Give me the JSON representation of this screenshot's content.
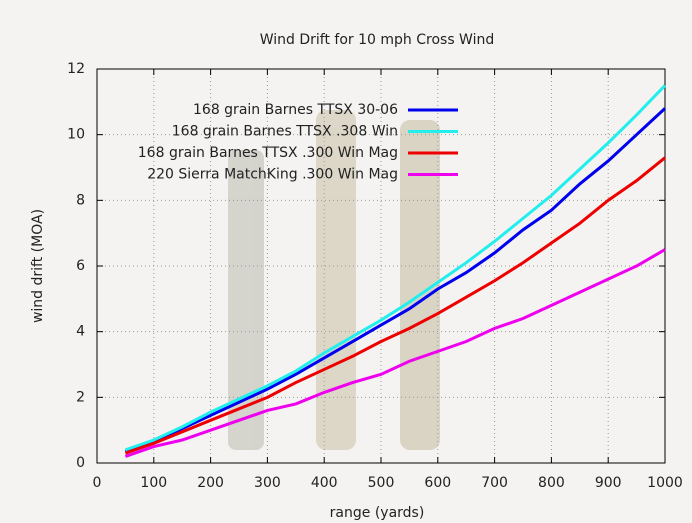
{
  "chart_data": {
    "type": "line",
    "title": "Wind Drift for 10 mph Cross Wind",
    "x_label": "range (yards)",
    "y_label": "wind drift (MOA)",
    "x": [
      50,
      100,
      150,
      200,
      250,
      300,
      350,
      400,
      450,
      500,
      550,
      600,
      650,
      700,
      750,
      800,
      850,
      900,
      950,
      1000
    ],
    "series": [
      {
        "name": "168 grain Barnes TTSX 30-06",
        "color": "#0000ee",
        "values": [
          0.35,
          0.65,
          1.05,
          1.45,
          1.85,
          2.25,
          2.7,
          3.2,
          3.7,
          4.2,
          4.7,
          5.3,
          5.8,
          6.4,
          7.1,
          7.7,
          8.5,
          9.2,
          10.0,
          10.8
        ]
      },
      {
        "name": "168 grain Barnes TTSX .308 Win",
        "color": "#22eeee",
        "values": [
          0.4,
          0.7,
          1.1,
          1.55,
          1.95,
          2.35,
          2.8,
          3.35,
          3.85,
          4.35,
          4.9,
          5.5,
          6.1,
          6.75,
          7.45,
          8.15,
          8.95,
          9.75,
          10.6,
          11.5
        ]
      },
      {
        "name": "168 grain Barnes TTSX .300 Win Mag",
        "color": "#ee0000",
        "values": [
          0.3,
          0.6,
          0.95,
          1.3,
          1.65,
          2.0,
          2.45,
          2.85,
          3.25,
          3.7,
          4.1,
          4.55,
          5.05,
          5.55,
          6.1,
          6.7,
          7.3,
          8.0,
          8.6,
          9.3
        ]
      },
      {
        "name": "220 Sierra MatchKing .300 Win Mag",
        "color": "#ee00ee",
        "values": [
          0.2,
          0.5,
          0.7,
          1.0,
          1.3,
          1.6,
          1.8,
          2.15,
          2.45,
          2.7,
          3.1,
          3.4,
          3.7,
          4.1,
          4.4,
          4.8,
          5.2,
          5.6,
          6.0,
          6.5
        ]
      }
    ],
    "xlim": [
      0,
      1000
    ],
    "xticks": [
      0,
      100,
      200,
      300,
      400,
      500,
      600,
      700,
      800,
      900,
      1000
    ],
    "ylim": [
      0,
      12
    ],
    "yticks": [
      0,
      2,
      4,
      6,
      8,
      10,
      12
    ],
    "grid": true,
    "legend": "top-left"
  }
}
